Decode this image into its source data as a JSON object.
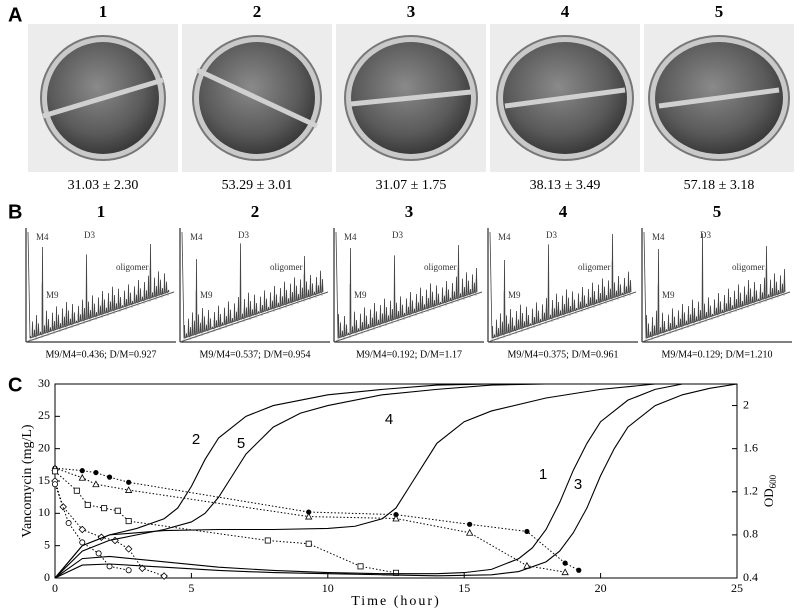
{
  "panel_a": {
    "letter": "A",
    "labels": [
      "1",
      "2",
      "3",
      "4",
      "5"
    ],
    "measurements": [
      "31.03 ± 2.30",
      "53.29 ± 3.01",
      "31.07 ± 1.75",
      "38.13 ± 3.49",
      "57.18 ± 3.18"
    ]
  },
  "panel_b": {
    "letter": "B",
    "labels": [
      "1",
      "2",
      "3",
      "4",
      "5"
    ],
    "peaks": [
      [
        "M4",
        "M9",
        "D3",
        "oligomer"
      ],
      [
        "M4",
        "M9",
        "D3",
        "oligomer"
      ],
      [
        "M4",
        "M9",
        "D3",
        "oligomer"
      ],
      [
        "M4",
        "M9",
        "D3",
        "oligomer"
      ],
      [
        "M4",
        "M9",
        "D3",
        "oligomer"
      ]
    ],
    "ratios": [
      "M9/M4=0.436; D/M=0.927",
      "M9/M4=0.537; D/M=0.954",
      "M9/M4=0.192; D/M=1.17",
      "M9/M4=0.375; D/M=0.961",
      "M9/M4=0.129; D/M=1.210"
    ]
  },
  "chart_data": {
    "type": "line",
    "letter": "C",
    "xlabel": "Time (hour)",
    "ylabel": "Vancomycin (mg/L)",
    "y2label": {
      "main": "OD",
      "sub": "600"
    },
    "xlim": [
      0,
      25
    ],
    "xticks": [
      0,
      5,
      10,
      15,
      20,
      25
    ],
    "ylim": [
      0,
      30
    ],
    "yticks": [
      0,
      5,
      10,
      15,
      20,
      25,
      30
    ],
    "y2lim": [
      0.4,
      2.2
    ],
    "y2ticks": [
      0.4,
      0.8,
      1.2,
      1.6,
      2
    ],
    "color": "#000000",
    "series": [
      {
        "axis": "y",
        "marker": "filled-circle",
        "linestyle": "dotted",
        "x": [
          0,
          1,
          1.5,
          2,
          2.7,
          9.3,
          12.5,
          15.2,
          17.3,
          18.7,
          19.2
        ],
        "values": [
          17,
          16.6,
          16.3,
          15.6,
          14.8,
          10.2,
          9.8,
          8.3,
          7.2,
          2.3,
          1.2
        ]
      },
      {
        "axis": "y",
        "marker": "triangle",
        "linestyle": "dotted",
        "x": [
          0,
          1,
          1.5,
          2.7,
          9.3,
          12.5,
          15.2,
          17.3,
          18.7
        ],
        "values": [
          17,
          15.5,
          14.5,
          13.6,
          9.5,
          9.2,
          7,
          1.9,
          0.9
        ]
      },
      {
        "axis": "y",
        "marker": "square",
        "linestyle": "dotted",
        "x": [
          0,
          0.8,
          1.2,
          1.8,
          2.3,
          2.7,
          7.8,
          9.3,
          11.2,
          12.5
        ],
        "values": [
          16.5,
          13.5,
          11.3,
          10.8,
          10.4,
          8.8,
          5.8,
          5.3,
          1.8,
          0.8
        ]
      },
      {
        "axis": "y",
        "marker": "diamond",
        "linestyle": "dotted",
        "x": [
          0,
          0.3,
          1,
          1.7,
          2.2,
          2.7,
          3.2,
          4
        ],
        "values": [
          15,
          11,
          7.5,
          6.3,
          5.8,
          4.5,
          1.5,
          0.3
        ]
      },
      {
        "axis": "y",
        "marker": "circle",
        "linestyle": "dotted",
        "x": [
          0,
          0.5,
          1,
          1.6,
          2,
          2.7
        ],
        "values": [
          14.5,
          8.5,
          5.5,
          3.8,
          1.8,
          1.2
        ]
      },
      {
        "name": "2",
        "axis": "y2",
        "linestyle": "solid",
        "x": [
          0,
          1,
          2,
          3,
          4,
          4.5,
          5,
          5.5,
          6,
          7,
          8,
          10,
          12,
          14,
          16
        ],
        "values": [
          0.4,
          0.7,
          0.8,
          0.86,
          0.95,
          1.05,
          1.25,
          1.5,
          1.7,
          1.9,
          2.0,
          2.1,
          2.15,
          2.19,
          2.2
        ]
      },
      {
        "name": "5",
        "axis": "y2",
        "linestyle": "solid",
        "x": [
          0,
          1,
          2,
          3,
          4,
          5,
          5.5,
          6,
          6.5,
          7,
          8,
          9,
          10,
          12,
          14,
          16,
          18
        ],
        "values": [
          0.4,
          0.65,
          0.75,
          0.8,
          0.85,
          0.92,
          1.0,
          1.15,
          1.35,
          1.55,
          1.8,
          1.93,
          2.0,
          2.1,
          2.15,
          2.19,
          2.2
        ]
      },
      {
        "name": "4",
        "axis": "y2",
        "linestyle": "solid",
        "x": [
          0,
          1,
          2,
          4,
          6,
          8,
          10,
          11,
          12,
          12.5,
          13,
          13.5,
          14,
          15,
          16,
          18,
          20,
          22
        ],
        "values": [
          0.4,
          0.7,
          0.8,
          0.84,
          0.85,
          0.85,
          0.86,
          0.88,
          0.95,
          1.05,
          1.25,
          1.45,
          1.65,
          1.85,
          1.95,
          2.07,
          2.15,
          2.2
        ]
      },
      {
        "name": "1",
        "axis": "y2",
        "linestyle": "solid",
        "x": [
          0,
          1,
          2,
          4,
          6,
          8,
          10,
          12,
          14,
          15,
          16,
          17,
          17.5,
          18,
          18.5,
          19,
          19.5,
          20,
          21,
          22,
          23
        ],
        "values": [
          0.4,
          0.58,
          0.6,
          0.55,
          0.5,
          0.47,
          0.45,
          0.44,
          0.44,
          0.45,
          0.48,
          0.58,
          0.68,
          0.85,
          1.1,
          1.4,
          1.65,
          1.85,
          2.05,
          2.15,
          2.2
        ]
      },
      {
        "name": "3",
        "axis": "y2",
        "linestyle": "solid",
        "x": [
          0,
          1,
          2,
          4,
          6,
          8,
          10,
          12,
          14,
          16,
          17,
          18,
          18.5,
          19,
          19.5,
          20,
          20.5,
          21,
          22,
          23,
          24,
          25
        ],
        "values": [
          0.4,
          0.52,
          0.53,
          0.5,
          0.47,
          0.45,
          0.44,
          0.43,
          0.42,
          0.43,
          0.46,
          0.55,
          0.65,
          0.82,
          1.05,
          1.35,
          1.6,
          1.8,
          2.0,
          2.1,
          2.16,
          2.2
        ]
      }
    ]
  }
}
